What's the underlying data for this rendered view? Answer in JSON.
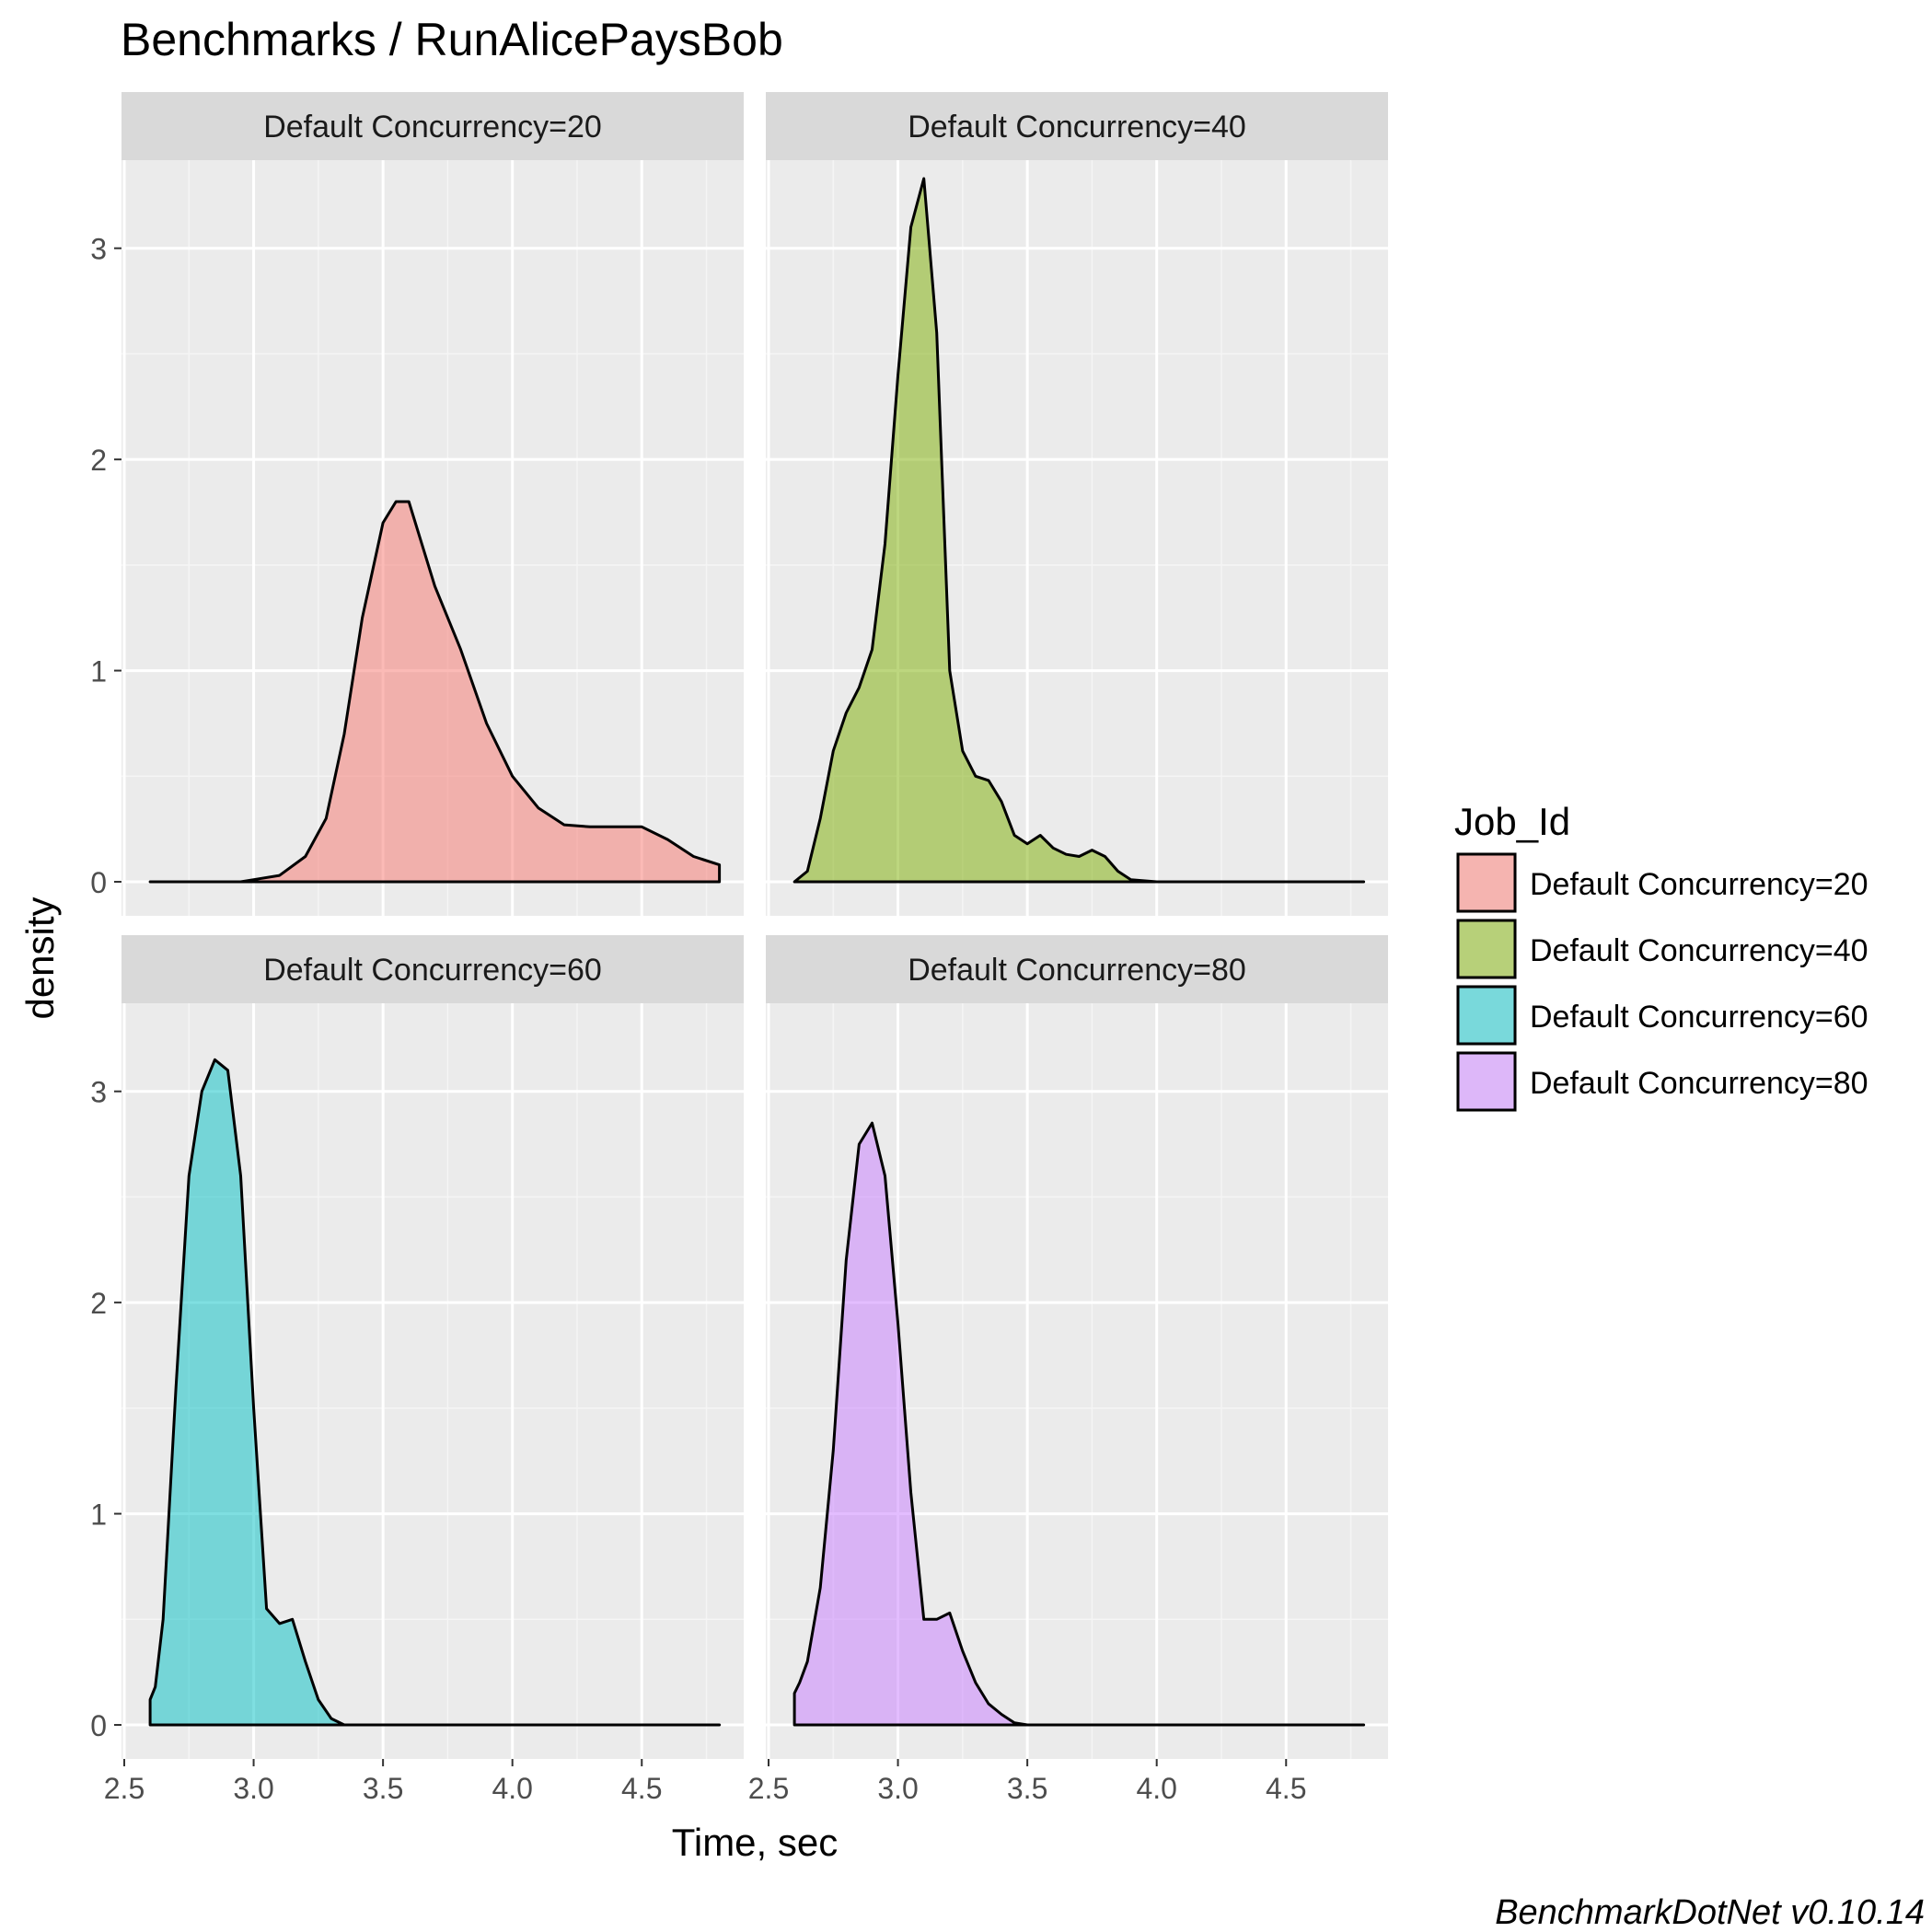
{
  "chart_data": {
    "type": "area",
    "title": "Benchmarks / RunAlicePaysBob",
    "xlabel": "Time, sec",
    "ylabel": "density",
    "caption": "BenchmarkDotNet v0.10.14",
    "xlim": [
      2.5,
      4.8
    ],
    "ylim": [
      0,
      3.35
    ],
    "xticks": [
      2.5,
      3.0,
      3.5,
      4.0,
      4.5
    ],
    "xtick_labels": [
      "2.5",
      "3.0",
      "3.5",
      "4.0",
      "4.5"
    ],
    "yticks": [
      0,
      1,
      2,
      3
    ],
    "ytick_labels": [
      "0",
      "1",
      "2",
      "3"
    ],
    "grid": true,
    "facet_layout": "2x2",
    "legend": {
      "title": "Job_Id",
      "position": "right",
      "entries": [
        {
          "label": "Default Concurrency=20",
          "color": "#F8766D"
        },
        {
          "label": "Default Concurrency=40",
          "color": "#7CAE00"
        },
        {
          "label": "Default Concurrency=60",
          "color": "#00BFC4"
        },
        {
          "label": "Default Concurrency=80",
          "color": "#C77CFF"
        }
      ]
    },
    "series": [
      {
        "name": "Default Concurrency=20",
        "color": "#F8766D",
        "x": [
          2.6,
          2.95,
          3.0,
          3.1,
          3.2,
          3.28,
          3.35,
          3.42,
          3.5,
          3.55,
          3.6,
          3.65,
          3.7,
          3.8,
          3.9,
          4.0,
          4.1,
          4.2,
          4.3,
          4.4,
          4.5,
          4.6,
          4.7,
          4.8
        ],
        "y": [
          0.0,
          0.0,
          0.01,
          0.03,
          0.12,
          0.3,
          0.7,
          1.25,
          1.7,
          1.8,
          1.8,
          1.6,
          1.4,
          1.1,
          0.75,
          0.5,
          0.35,
          0.27,
          0.26,
          0.26,
          0.26,
          0.2,
          0.12,
          0.08
        ]
      },
      {
        "name": "Default Concurrency=40",
        "color": "#7CAE00",
        "x": [
          2.6,
          2.65,
          2.7,
          2.75,
          2.8,
          2.85,
          2.9,
          2.95,
          3.0,
          3.05,
          3.1,
          3.15,
          3.2,
          3.25,
          3.3,
          3.35,
          3.4,
          3.45,
          3.5,
          3.55,
          3.6,
          3.65,
          3.7,
          3.75,
          3.8,
          3.85,
          3.9,
          4.0,
          4.8
        ],
        "y": [
          0.0,
          0.05,
          0.3,
          0.62,
          0.8,
          0.92,
          1.1,
          1.6,
          2.4,
          3.1,
          3.33,
          2.6,
          1.0,
          0.62,
          0.5,
          0.48,
          0.38,
          0.22,
          0.18,
          0.22,
          0.16,
          0.13,
          0.12,
          0.15,
          0.12,
          0.05,
          0.01,
          0.0,
          0.0
        ]
      },
      {
        "name": "Default Concurrency=60",
        "color": "#00BFC4",
        "x": [
          2.6,
          2.62,
          2.65,
          2.7,
          2.75,
          2.8,
          2.85,
          2.9,
          2.95,
          3.0,
          3.05,
          3.1,
          3.15,
          3.2,
          3.25,
          3.3,
          3.35,
          3.4,
          4.8
        ],
        "y": [
          0.12,
          0.18,
          0.5,
          1.6,
          2.6,
          3.0,
          3.15,
          3.1,
          2.6,
          1.5,
          0.55,
          0.48,
          0.5,
          0.3,
          0.12,
          0.03,
          0.0,
          0.0,
          0.0
        ]
      },
      {
        "name": "Default Concurrency=80",
        "color": "#C77CFF",
        "x": [
          2.6,
          2.62,
          2.65,
          2.7,
          2.75,
          2.8,
          2.85,
          2.9,
          2.95,
          3.0,
          3.05,
          3.1,
          3.15,
          3.2,
          3.25,
          3.3,
          3.35,
          3.4,
          3.45,
          3.5,
          4.8
        ],
        "y": [
          0.15,
          0.2,
          0.3,
          0.65,
          1.3,
          2.2,
          2.75,
          2.85,
          2.6,
          1.9,
          1.1,
          0.5,
          0.5,
          0.53,
          0.35,
          0.2,
          0.1,
          0.05,
          0.01,
          0.0,
          0.0
        ]
      }
    ]
  }
}
